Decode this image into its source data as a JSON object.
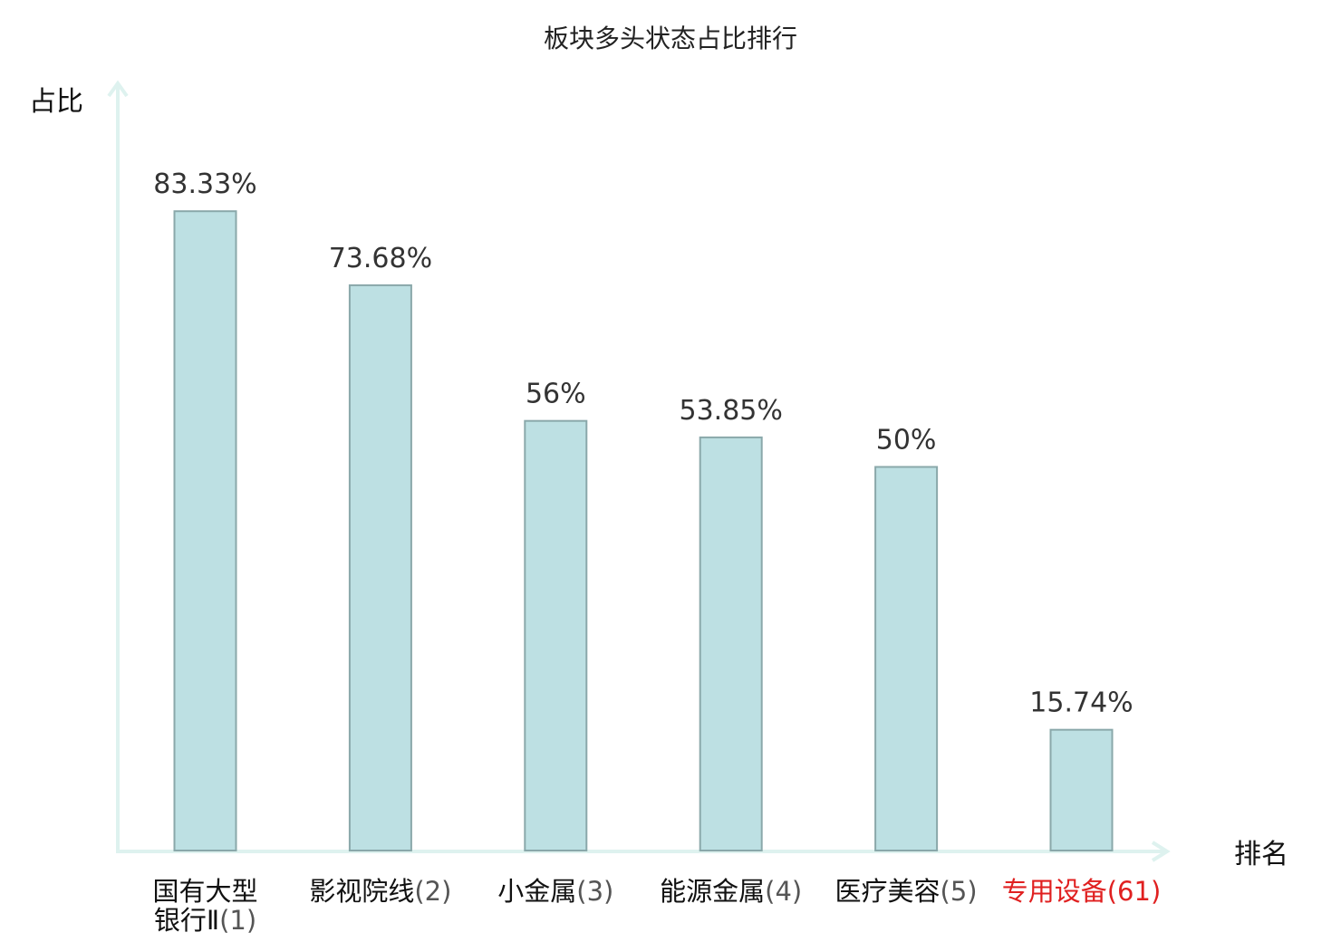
{
  "chart_data": {
    "type": "bar",
    "title": "板块多头状态占比排行",
    "ylabel": "占比",
    "xlabel": "排名",
    "ylim": [
      0,
      100
    ],
    "grid": false,
    "categories": [
      {
        "name": "国有大型银行Ⅱ",
        "rank": "(1)",
        "value": 83.33,
        "value_label": "83.33%",
        "highlight": false
      },
      {
        "name": "影视院线",
        "rank": "(2)",
        "value": 73.68,
        "value_label": "73.68%",
        "highlight": false
      },
      {
        "name": "小金属",
        "rank": "(3)",
        "value": 56,
        "value_label": "56%",
        "highlight": false
      },
      {
        "name": "能源金属",
        "rank": "(4)",
        "value": 53.85,
        "value_label": "53.85%",
        "highlight": false
      },
      {
        "name": "医疗美容",
        "rank": "(5)",
        "value": 50,
        "value_label": "50%",
        "highlight": false
      },
      {
        "name": "专用设备",
        "rank": "(61)",
        "value": 15.74,
        "value_label": "15.74%",
        "highlight": true
      }
    ]
  },
  "colors": {
    "bar_fill": "#bde0e3",
    "bar_stroke": "#8aa8aa",
    "axis": "#def2ef",
    "label_dark": "#111111",
    "rank_gray": "#555555",
    "highlight_red": "#e02020"
  }
}
